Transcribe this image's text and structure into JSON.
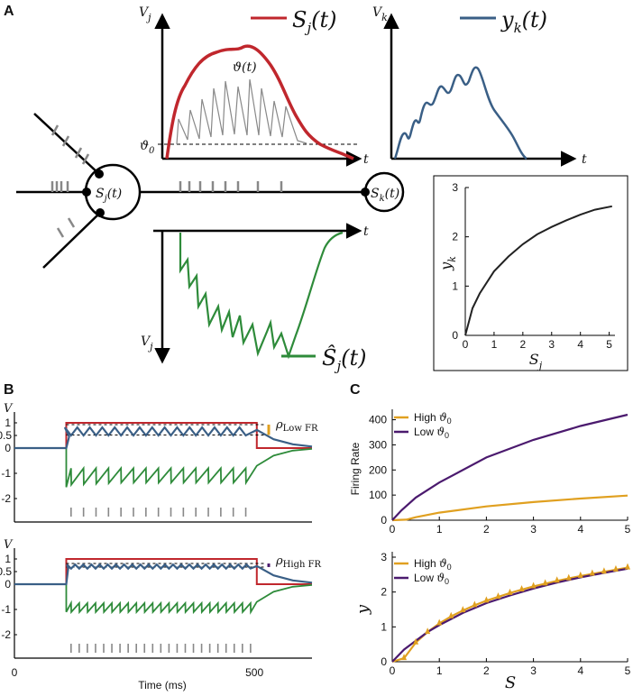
{
  "panels": {
    "a": "A",
    "b": "B",
    "c": "C"
  },
  "colors": {
    "red": "#c0272d",
    "blue": "#3a5f86",
    "green": "#2e8b3a",
    "orange": "#e0a020",
    "purple": "#4b1a6e",
    "gray": "#888888"
  },
  "a": {
    "vj": "V",
    "vj_sub": "j",
    "vk": "V",
    "vk_sub": "k",
    "t_label": "t",
    "vartheta_t": "ϑ(t)",
    "vartheta0": "ϑ",
    "vartheta0_sub": "0",
    "legend_sj": "S",
    "legend_sj_rest": "(t)",
    "legend_yk": "y",
    "legend_yk_rest": "(t)",
    "legend_shat": "Ŝ",
    "legend_shat_rest": "(t)",
    "sub_j": "j",
    "sub_k": "k",
    "soma_j": "S",
    "soma_j_rest": "(t)",
    "soma_k": "S",
    "soma_k_rest": "(t)",
    "inset": {
      "xlabel": "S",
      "xlabel_sub": "j",
      "ylabel": "y",
      "ylabel_sub": "k",
      "xticks": [
        "0",
        "1",
        "2",
        "3",
        "4",
        "5"
      ],
      "yticks": [
        "0",
        "1",
        "2",
        "3"
      ]
    }
  },
  "b": {
    "vlabel": "V",
    "yticks": [
      "1",
      "0.5",
      "0",
      "-1",
      "-2"
    ],
    "xticks": [
      "0",
      "500"
    ],
    "xlabel": "Time (ms)",
    "rho_low": "ρ",
    "rho_low_sub": "Low FR",
    "rho_high": "ρ",
    "rho_high_sub": "High FR"
  },
  "chart_data": [
    {
      "type": "line",
      "title": "Panel A inset",
      "xlabel": "S_j",
      "ylabel": "y_k",
      "xlim": [
        0,
        5.2
      ],
      "ylim": [
        0,
        3
      ],
      "series": [
        {
          "name": "y_k(S_j)",
          "x": [
            0,
            0.25,
            0.5,
            1,
            1.5,
            2,
            2.5,
            3,
            3.5,
            4,
            4.5,
            5.1
          ],
          "y": [
            0,
            0.55,
            0.85,
            1.3,
            1.6,
            1.85,
            2.05,
            2.2,
            2.33,
            2.45,
            2.55,
            2.62
          ]
        }
      ]
    },
    {
      "type": "line",
      "title": "Panel C top",
      "xlabel": "",
      "ylabel": "Firing Rate",
      "xlim": [
        0,
        5
      ],
      "ylim": [
        0,
        420
      ],
      "xticks": [
        "0",
        "1",
        "2",
        "3",
        "4",
        "5"
      ],
      "yticks": [
        "0",
        "100",
        "200",
        "300",
        "400"
      ],
      "series": [
        {
          "name": "High ϑ0",
          "x": [
            0,
            0.3,
            0.5,
            1,
            2,
            3,
            4,
            5
          ],
          "y": [
            0,
            2,
            12,
            30,
            55,
            72,
            86,
            98
          ]
        },
        {
          "name": "Low ϑ0",
          "x": [
            0,
            0.2,
            0.5,
            1,
            2,
            3,
            4,
            5
          ],
          "y": [
            0,
            40,
            90,
            150,
            250,
            320,
            375,
            420
          ]
        }
      ],
      "legend": [
        {
          "label": "High",
          "sym": "ϑ",
          "sub": "0"
        },
        {
          "label": "Low",
          "sym": "ϑ",
          "sub": "0"
        }
      ]
    },
    {
      "type": "line",
      "title": "Panel C bottom",
      "xlabel": "S",
      "ylabel": "y",
      "xlim": [
        0,
        5
      ],
      "ylim": [
        0,
        3
      ],
      "xticks": [
        "0",
        "1",
        "2",
        "3",
        "4",
        "5"
      ],
      "yticks": [
        "0",
        "1",
        "2",
        "3"
      ],
      "series": [
        {
          "name": "High ϑ0",
          "x": [
            0,
            0.25,
            0.5,
            0.75,
            1,
            1.25,
            1.5,
            1.75,
            2,
            2.25,
            2.5,
            2.75,
            3,
            3.25,
            3.5,
            3.75,
            4,
            4.25,
            4.5,
            4.75,
            5
          ],
          "y": [
            0,
            0.1,
            0.55,
            0.85,
            1.1,
            1.3,
            1.47,
            1.62,
            1.75,
            1.86,
            1.97,
            2.07,
            2.16,
            2.24,
            2.32,
            2.39,
            2.46,
            2.52,
            2.58,
            2.64,
            2.7
          ]
        },
        {
          "name": "Low ϑ0",
          "x": [
            0,
            0.25,
            0.5,
            0.75,
            1,
            1.5,
            2,
            2.5,
            3,
            3.5,
            4,
            4.5,
            5
          ],
          "y": [
            0,
            0.35,
            0.6,
            0.85,
            1.05,
            1.4,
            1.68,
            1.9,
            2.1,
            2.27,
            2.42,
            2.55,
            2.67
          ]
        }
      ],
      "legend": [
        {
          "label": "High",
          "sym": "ϑ",
          "sub": "0"
        },
        {
          "label": "Low",
          "sym": "ϑ",
          "sub": "0"
        }
      ]
    }
  ]
}
